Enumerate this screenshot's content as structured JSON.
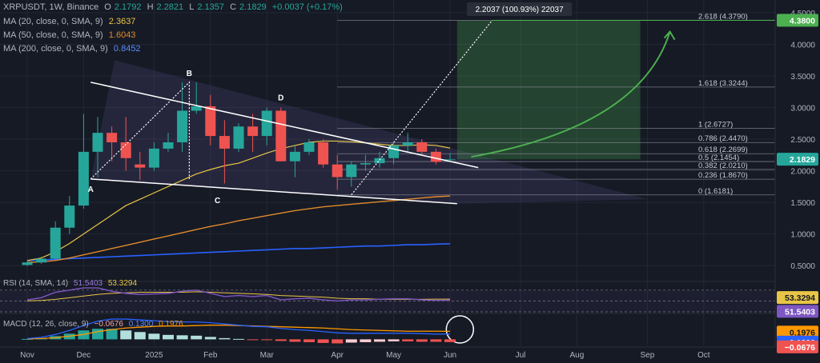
{
  "header": {
    "symbol_line": "XRPUSDT, 1W, Binance",
    "o_label": "O",
    "o_value": "2.1792",
    "h_label": "H",
    "h_value": "2.2821",
    "l_label": "L",
    "l_value": "2.1357",
    "c_label": "C",
    "c_value": "2.1829",
    "change": "+0.0037 (+0.17%)"
  },
  "indicators": {
    "ma20": {
      "label": "MA (20, close, 0, SMA, 9)",
      "value": "2.3637",
      "color": "#e8c547"
    },
    "ma50": {
      "label": "MA (50, close, 0, SMA, 9)",
      "value": "1.6043",
      "color": "#e08a2c"
    },
    "ma200": {
      "label": "MA (200, close, 0, SMA, 9)",
      "value": "0.8452",
      "color": "#2962ff"
    },
    "rsi": {
      "label": "RSI (14, SMA, 14)",
      "value": "51.5403",
      "ma_value": "53.3294",
      "color": "#7e57c2",
      "ma_color": "#e8c547"
    },
    "macd": {
      "label": "MACD (12, 26, close, 9)",
      "hist_text": "−0.0676",
      "macd_text": "0.1300",
      "signal_text": "0.1976"
    }
  },
  "annotations": {
    "measure_box": "2.2037 (100.93%) 22037",
    "point_labels": [
      "A",
      "B",
      "C",
      "D"
    ]
  },
  "price_axis_labels": [
    "4.5000",
    "4.0000",
    "3.5000",
    "3.0000",
    "2.5000",
    "2.0000",
    "1.5000",
    "1.0000",
    "0.5000"
  ],
  "price_axis_badges": {
    "target": "4.3800",
    "current": "2.1829",
    "rsi_ma": "53.3294",
    "rsi": "51.5403",
    "macd_signal": "0.1976",
    "macd": "0.1300",
    "macd_hist": "−0.0676"
  },
  "colors": {
    "up": "#26a69a",
    "down": "#ef5350",
    "target_badge": "#4caf50",
    "current_badge": "#26a69a"
  },
  "chart_data": {
    "type": "candlestick",
    "x_labels": [
      "Nov",
      "Dec",
      "2025",
      "Feb",
      "Mar",
      "Apr",
      "May",
      "Jun",
      "Jul",
      "Aug",
      "Sep",
      "Oct"
    ],
    "x_label_weeks": [
      0,
      4,
      9,
      13,
      17,
      22,
      26,
      30,
      35,
      39,
      44,
      48
    ],
    "ylim": [
      0.3,
      4.6
    ],
    "candles": [
      [
        0.51,
        0.57,
        0.49,
        0.55
      ],
      [
        0.55,
        0.64,
        0.53,
        0.61
      ],
      [
        0.61,
        1.2,
        0.59,
        1.1
      ],
      [
        1.1,
        1.6,
        1.0,
        1.45
      ],
      [
        1.45,
        2.9,
        1.4,
        2.3
      ],
      [
        2.3,
        2.85,
        1.9,
        2.6
      ],
      [
        2.6,
        2.7,
        2.15,
        2.45
      ],
      [
        2.45,
        2.85,
        2.0,
        2.2
      ],
      [
        2.1,
        2.3,
        1.85,
        2.05
      ],
      [
        2.05,
        2.45,
        2.0,
        2.35
      ],
      [
        2.35,
        2.6,
        2.3,
        2.45
      ],
      [
        2.45,
        3.4,
        2.3,
        2.95
      ],
      [
        2.95,
        3.4,
        2.9,
        3.02
      ],
      [
        3.02,
        3.2,
        2.4,
        2.55
      ],
      [
        2.55,
        2.8,
        1.8,
        2.35
      ],
      [
        2.35,
        2.75,
        2.3,
        2.7
      ],
      [
        2.7,
        2.9,
        2.3,
        2.55
      ],
      [
        2.55,
        3.0,
        2.4,
        2.95
      ],
      [
        2.95,
        3.0,
        2.15,
        2.15
      ],
      [
        2.15,
        2.4,
        1.9,
        2.3
      ],
      [
        2.3,
        2.5,
        2.25,
        2.45
      ],
      [
        2.45,
        2.5,
        2.05,
        2.1
      ],
      [
        2.1,
        2.25,
        1.7,
        1.9
      ],
      [
        1.9,
        2.15,
        1.75,
        2.1
      ],
      [
        2.1,
        2.25,
        2.0,
        2.12
      ],
      [
        2.12,
        2.3,
        2.05,
        2.2
      ],
      [
        2.2,
        2.45,
        2.1,
        2.4
      ],
      [
        2.4,
        2.6,
        2.3,
        2.45
      ],
      [
        2.45,
        2.5,
        2.25,
        2.3
      ],
      [
        2.3,
        2.35,
        2.1,
        2.14
      ],
      [
        2.18,
        2.28,
        2.14,
        2.18
      ]
    ],
    "ma20": [
      0.58,
      0.62,
      0.72,
      0.85,
      1.0,
      1.15,
      1.3,
      1.45,
      1.55,
      1.65,
      1.75,
      1.85,
      1.95,
      2.02,
      2.08,
      2.12,
      2.2,
      2.28,
      2.35,
      2.4,
      2.45,
      2.47,
      2.47,
      2.46,
      2.44,
      2.42,
      2.4,
      2.4,
      2.41,
      2.4,
      2.36
    ],
    "ma50": [
      0.55,
      0.56,
      0.58,
      0.62,
      0.67,
      0.72,
      0.77,
      0.82,
      0.87,
      0.92,
      0.97,
      1.02,
      1.07,
      1.12,
      1.16,
      1.21,
      1.25,
      1.29,
      1.33,
      1.37,
      1.4,
      1.43,
      1.45,
      1.47,
      1.49,
      1.51,
      1.53,
      1.55,
      1.57,
      1.59,
      1.6
    ],
    "ma200": [
      0.58,
      0.59,
      0.6,
      0.61,
      0.62,
      0.63,
      0.64,
      0.65,
      0.66,
      0.67,
      0.68,
      0.69,
      0.7,
      0.71,
      0.72,
      0.73,
      0.74,
      0.75,
      0.76,
      0.77,
      0.77,
      0.78,
      0.79,
      0.8,
      0.81,
      0.81,
      0.82,
      0.83,
      0.83,
      0.84,
      0.845
    ],
    "rsi_ylim": [
      30,
      80
    ],
    "rsi": [
      52,
      56,
      66,
      70,
      74,
      74,
      68,
      64,
      62,
      63,
      64,
      68,
      70,
      64,
      58,
      60,
      58,
      60,
      52,
      54,
      55,
      52,
      50,
      52,
      52,
      53,
      54,
      54,
      52,
      51,
      51.5
    ],
    "rsi_ma": [
      50,
      51,
      53,
      56,
      59,
      62,
      64,
      65,
      66,
      66,
      66,
      66,
      67,
      66,
      65,
      64,
      63,
      62,
      60,
      59,
      58,
      57,
      55,
      54,
      54,
      53,
      53,
      53,
      53,
      53.3,
      53.3
    ],
    "macd_ylim": [
      -0.15,
      0.6
    ],
    "macd_hist": [
      0.01,
      0.03,
      0.08,
      0.14,
      0.22,
      0.26,
      0.26,
      0.22,
      0.18,
      0.14,
      0.11,
      0.1,
      0.09,
      0.06,
      0.03,
      0.01,
      -0.01,
      -0.01,
      -0.04,
      -0.06,
      -0.07,
      -0.09,
      -0.1,
      -0.08,
      -0.07,
      -0.06,
      -0.05,
      -0.05,
      -0.06,
      -0.06,
      -0.0676
    ],
    "macd_line": [
      0.02,
      0.05,
      0.12,
      0.22,
      0.34,
      0.45,
      0.5,
      0.5,
      0.48,
      0.46,
      0.44,
      0.43,
      0.43,
      0.41,
      0.38,
      0.35,
      0.32,
      0.31,
      0.27,
      0.24,
      0.22,
      0.19,
      0.16,
      0.15,
      0.15,
      0.15,
      0.15,
      0.15,
      0.14,
      0.13,
      0.13
    ],
    "macd_signal": [
      0.01,
      0.02,
      0.04,
      0.08,
      0.12,
      0.19,
      0.24,
      0.28,
      0.3,
      0.32,
      0.33,
      0.33,
      0.34,
      0.35,
      0.35,
      0.34,
      0.33,
      0.32,
      0.31,
      0.3,
      0.29,
      0.28,
      0.26,
      0.24,
      0.23,
      0.22,
      0.21,
      0.2,
      0.2,
      0.2,
      0.1976
    ],
    "fib_levels": [
      {
        "label": "0 (1.6181)",
        "value": 1.6181
      },
      {
        "label": "0.236 (1.8670)",
        "value": 1.867
      },
      {
        "label": "0.382 (2.0210)",
        "value": 2.021
      },
      {
        "label": "0.5 (2.1454)",
        "value": 2.1454
      },
      {
        "label": "0.618 (2.2699)",
        "value": 2.2699
      },
      {
        "label": "0.786 (2.4470)",
        "value": 2.447
      },
      {
        "label": "1 (2.6727)",
        "value": 2.6727
      },
      {
        "label": "1.618 (3.3244)",
        "value": 3.3244
      },
      {
        "label": "2.618 (4.3790)",
        "value": 4.379
      }
    ],
    "target_price": 4.38,
    "wedge_upper": [
      [
        4.5,
        3.4
      ],
      [
        32,
        2.05
      ]
    ],
    "wedge_lower": [
      [
        4.5,
        1.87
      ],
      [
        30.5,
        1.48
      ]
    ],
    "pattern_points": [
      {
        "name": "A",
        "week": 4.5,
        "price": 1.87
      },
      {
        "name": "B",
        "week": 11.5,
        "price": 3.4
      },
      {
        "name": "C",
        "week": 13.5,
        "price": 1.69
      },
      {
        "name": "D",
        "week": 18,
        "price": 3.01
      }
    ],
    "measure_dotted": [
      [
        4.5,
        1.87
      ],
      [
        11.5,
        3.4
      ],
      [
        11.5,
        1.87
      ]
    ],
    "projection_dotted": [
      [
        23,
        1.62
      ],
      [
        33,
        4.38
      ]
    ],
    "projection_box_weeks": [
      30.5,
      43.5
    ],
    "projection_box_prices": [
      2.18,
      4.38
    ]
  }
}
